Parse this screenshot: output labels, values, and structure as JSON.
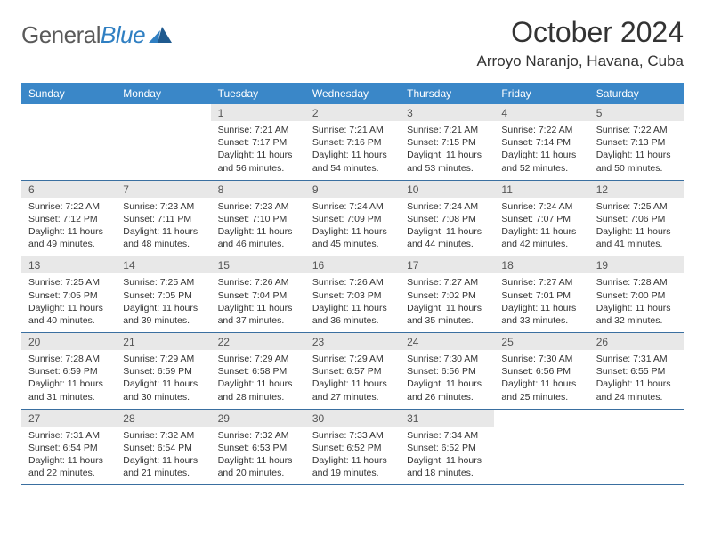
{
  "brand": {
    "name_part1": "General",
    "name_part2": "Blue"
  },
  "title": "October 2024",
  "location": "Arroyo Naranjo, Havana, Cuba",
  "colors": {
    "header_bg": "#3a87c8",
    "header_text": "#ffffff",
    "daynum_bg": "#e8e8e8",
    "rule": "#3a6fa0",
    "brand_gray": "#5a5a5a",
    "brand_blue": "#2f7fc2"
  },
  "weekdays": [
    "Sunday",
    "Monday",
    "Tuesday",
    "Wednesday",
    "Thursday",
    "Friday",
    "Saturday"
  ],
  "weeks": [
    [
      null,
      null,
      {
        "n": "1",
        "sr": "7:21 AM",
        "ss": "7:17 PM",
        "dl": "11 hours and 56 minutes."
      },
      {
        "n": "2",
        "sr": "7:21 AM",
        "ss": "7:16 PM",
        "dl": "11 hours and 54 minutes."
      },
      {
        "n": "3",
        "sr": "7:21 AM",
        "ss": "7:15 PM",
        "dl": "11 hours and 53 minutes."
      },
      {
        "n": "4",
        "sr": "7:22 AM",
        "ss": "7:14 PM",
        "dl": "11 hours and 52 minutes."
      },
      {
        "n": "5",
        "sr": "7:22 AM",
        "ss": "7:13 PM",
        "dl": "11 hours and 50 minutes."
      }
    ],
    [
      {
        "n": "6",
        "sr": "7:22 AM",
        "ss": "7:12 PM",
        "dl": "11 hours and 49 minutes."
      },
      {
        "n": "7",
        "sr": "7:23 AM",
        "ss": "7:11 PM",
        "dl": "11 hours and 48 minutes."
      },
      {
        "n": "8",
        "sr": "7:23 AM",
        "ss": "7:10 PM",
        "dl": "11 hours and 46 minutes."
      },
      {
        "n": "9",
        "sr": "7:24 AM",
        "ss": "7:09 PM",
        "dl": "11 hours and 45 minutes."
      },
      {
        "n": "10",
        "sr": "7:24 AM",
        "ss": "7:08 PM",
        "dl": "11 hours and 44 minutes."
      },
      {
        "n": "11",
        "sr": "7:24 AM",
        "ss": "7:07 PM",
        "dl": "11 hours and 42 minutes."
      },
      {
        "n": "12",
        "sr": "7:25 AM",
        "ss": "7:06 PM",
        "dl": "11 hours and 41 minutes."
      }
    ],
    [
      {
        "n": "13",
        "sr": "7:25 AM",
        "ss": "7:05 PM",
        "dl": "11 hours and 40 minutes."
      },
      {
        "n": "14",
        "sr": "7:25 AM",
        "ss": "7:05 PM",
        "dl": "11 hours and 39 minutes."
      },
      {
        "n": "15",
        "sr": "7:26 AM",
        "ss": "7:04 PM",
        "dl": "11 hours and 37 minutes."
      },
      {
        "n": "16",
        "sr": "7:26 AM",
        "ss": "7:03 PM",
        "dl": "11 hours and 36 minutes."
      },
      {
        "n": "17",
        "sr": "7:27 AM",
        "ss": "7:02 PM",
        "dl": "11 hours and 35 minutes."
      },
      {
        "n": "18",
        "sr": "7:27 AM",
        "ss": "7:01 PM",
        "dl": "11 hours and 33 minutes."
      },
      {
        "n": "19",
        "sr": "7:28 AM",
        "ss": "7:00 PM",
        "dl": "11 hours and 32 minutes."
      }
    ],
    [
      {
        "n": "20",
        "sr": "7:28 AM",
        "ss": "6:59 PM",
        "dl": "11 hours and 31 minutes."
      },
      {
        "n": "21",
        "sr": "7:29 AM",
        "ss": "6:59 PM",
        "dl": "11 hours and 30 minutes."
      },
      {
        "n": "22",
        "sr": "7:29 AM",
        "ss": "6:58 PM",
        "dl": "11 hours and 28 minutes."
      },
      {
        "n": "23",
        "sr": "7:29 AM",
        "ss": "6:57 PM",
        "dl": "11 hours and 27 minutes."
      },
      {
        "n": "24",
        "sr": "7:30 AM",
        "ss": "6:56 PM",
        "dl": "11 hours and 26 minutes."
      },
      {
        "n": "25",
        "sr": "7:30 AM",
        "ss": "6:56 PM",
        "dl": "11 hours and 25 minutes."
      },
      {
        "n": "26",
        "sr": "7:31 AM",
        "ss": "6:55 PM",
        "dl": "11 hours and 24 minutes."
      }
    ],
    [
      {
        "n": "27",
        "sr": "7:31 AM",
        "ss": "6:54 PM",
        "dl": "11 hours and 22 minutes."
      },
      {
        "n": "28",
        "sr": "7:32 AM",
        "ss": "6:54 PM",
        "dl": "11 hours and 21 minutes."
      },
      {
        "n": "29",
        "sr": "7:32 AM",
        "ss": "6:53 PM",
        "dl": "11 hours and 20 minutes."
      },
      {
        "n": "30",
        "sr": "7:33 AM",
        "ss": "6:52 PM",
        "dl": "11 hours and 19 minutes."
      },
      {
        "n": "31",
        "sr": "7:34 AM",
        "ss": "6:52 PM",
        "dl": "11 hours and 18 minutes."
      },
      null,
      null
    ]
  ],
  "labels": {
    "sunrise": "Sunrise:",
    "sunset": "Sunset:",
    "daylight": "Daylight:"
  }
}
